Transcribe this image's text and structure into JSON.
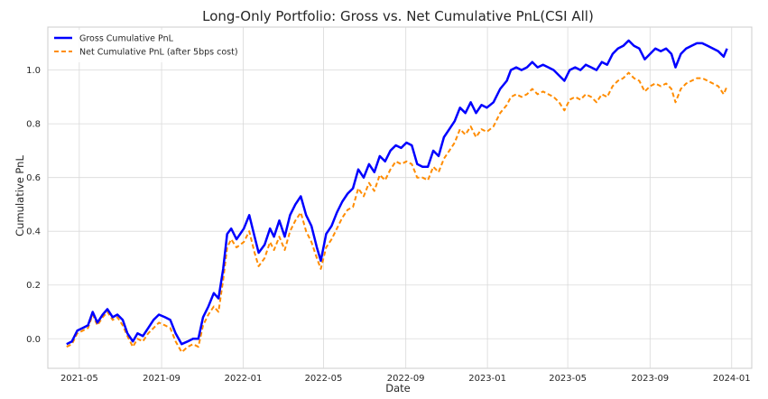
{
  "chart_data": {
    "type": "line",
    "title": "Long-Only Portfolio: Gross vs. Net Cumulative PnL(CSI All)",
    "xlabel": "Date",
    "ylabel": "Cumulative PnL",
    "xlim": [
      "2021-03-15",
      "2024-01-31"
    ],
    "ylim": [
      -0.11,
      1.16
    ],
    "grid": true,
    "legend_position": "top-left",
    "x_tick_labels": [
      "2021-05",
      "2021-09",
      "2022-01",
      "2022-05",
      "2022-09",
      "2023-01",
      "2023-05",
      "2023-09",
      "2024-01"
    ],
    "x_ticks": [
      "2021-05-01",
      "2021-09-01",
      "2022-01-01",
      "2022-05-01",
      "2022-09-01",
      "2023-01-01",
      "2023-05-01",
      "2023-09-01",
      "2024-01-01"
    ],
    "y_ticks": [
      0.0,
      0.2,
      0.4,
      0.6,
      0.8,
      1.0
    ],
    "y_tick_labels": [
      "0.0",
      "0.2",
      "0.4",
      "0.6",
      "0.8",
      "1.0"
    ],
    "series": [
      {
        "name": "Gross Cumulative PnL",
        "color": "#0000ff",
        "style": "solid",
        "points": [
          [
            "2021-04-12",
            -0.02
          ],
          [
            "2021-04-20",
            -0.01
          ],
          [
            "2021-04-28",
            0.03
          ],
          [
            "2021-05-06",
            0.04
          ],
          [
            "2021-05-14",
            0.05
          ],
          [
            "2021-05-21",
            0.1
          ],
          [
            "2021-05-28",
            0.06
          ],
          [
            "2021-06-05",
            0.09
          ],
          [
            "2021-06-12",
            0.11
          ],
          [
            "2021-06-20",
            0.08
          ],
          [
            "2021-06-27",
            0.09
          ],
          [
            "2021-07-05",
            0.07
          ],
          [
            "2021-07-12",
            0.02
          ],
          [
            "2021-07-20",
            -0.01
          ],
          [
            "2021-07-27",
            0.02
          ],
          [
            "2021-08-04",
            0.01
          ],
          [
            "2021-08-12",
            0.04
          ],
          [
            "2021-08-20",
            0.07
          ],
          [
            "2021-08-28",
            0.09
          ],
          [
            "2021-09-06",
            0.08
          ],
          [
            "2021-09-14",
            0.07
          ],
          [
            "2021-09-22",
            0.02
          ],
          [
            "2021-10-01",
            -0.02
          ],
          [
            "2021-10-10",
            -0.01
          ],
          [
            "2021-10-18",
            0.0
          ],
          [
            "2021-10-26",
            0.0
          ],
          [
            "2021-11-02",
            0.08
          ],
          [
            "2021-11-10",
            0.12
          ],
          [
            "2021-11-18",
            0.17
          ],
          [
            "2021-11-25",
            0.15
          ],
          [
            "2021-12-02",
            0.26
          ],
          [
            "2021-12-08",
            0.39
          ],
          [
            "2021-12-14",
            0.41
          ],
          [
            "2021-12-22",
            0.37
          ],
          [
            "2022-01-02",
            0.41
          ],
          [
            "2022-01-10",
            0.46
          ],
          [
            "2022-01-18",
            0.38
          ],
          [
            "2022-01-24",
            0.32
          ],
          [
            "2022-02-02",
            0.35
          ],
          [
            "2022-02-10",
            0.41
          ],
          [
            "2022-02-16",
            0.38
          ],
          [
            "2022-02-24",
            0.44
          ],
          [
            "2022-03-04",
            0.38
          ],
          [
            "2022-03-12",
            0.46
          ],
          [
            "2022-03-20",
            0.5
          ],
          [
            "2022-03-28",
            0.53
          ],
          [
            "2022-04-05",
            0.46
          ],
          [
            "2022-04-13",
            0.42
          ],
          [
            "2022-04-21",
            0.34
          ],
          [
            "2022-04-27",
            0.29
          ],
          [
            "2022-05-05",
            0.39
          ],
          [
            "2022-05-13",
            0.42
          ],
          [
            "2022-05-21",
            0.47
          ],
          [
            "2022-05-29",
            0.51
          ],
          [
            "2022-06-06",
            0.54
          ],
          [
            "2022-06-14",
            0.56
          ],
          [
            "2022-06-22",
            0.63
          ],
          [
            "2022-06-30",
            0.6
          ],
          [
            "2022-07-08",
            0.65
          ],
          [
            "2022-07-16",
            0.62
          ],
          [
            "2022-07-24",
            0.68
          ],
          [
            "2022-08-01",
            0.66
          ],
          [
            "2022-08-09",
            0.7
          ],
          [
            "2022-08-17",
            0.72
          ],
          [
            "2022-08-25",
            0.71
          ],
          [
            "2022-09-02",
            0.73
          ],
          [
            "2022-09-10",
            0.72
          ],
          [
            "2022-09-18",
            0.65
          ],
          [
            "2022-09-26",
            0.64
          ],
          [
            "2022-10-04",
            0.64
          ],
          [
            "2022-10-12",
            0.7
          ],
          [
            "2022-10-20",
            0.68
          ],
          [
            "2022-10-28",
            0.75
          ],
          [
            "2022-11-05",
            0.78
          ],
          [
            "2022-11-13",
            0.81
          ],
          [
            "2022-11-21",
            0.86
          ],
          [
            "2022-11-29",
            0.84
          ],
          [
            "2022-12-07",
            0.88
          ],
          [
            "2022-12-15",
            0.84
          ],
          [
            "2022-12-23",
            0.87
          ],
          [
            "2022-12-31",
            0.86
          ],
          [
            "2023-01-10",
            0.88
          ],
          [
            "2023-01-20",
            0.93
          ],
          [
            "2023-01-30",
            0.96
          ],
          [
            "2023-02-05",
            1.0
          ],
          [
            "2023-02-13",
            1.01
          ],
          [
            "2023-02-21",
            1.0
          ],
          [
            "2023-03-01",
            1.01
          ],
          [
            "2023-03-09",
            1.03
          ],
          [
            "2023-03-17",
            1.01
          ],
          [
            "2023-03-25",
            1.02
          ],
          [
            "2023-04-02",
            1.01
          ],
          [
            "2023-04-10",
            1.0
          ],
          [
            "2023-04-18",
            0.98
          ],
          [
            "2023-04-26",
            0.96
          ],
          [
            "2023-05-04",
            1.0
          ],
          [
            "2023-05-12",
            1.01
          ],
          [
            "2023-05-20",
            1.0
          ],
          [
            "2023-05-28",
            1.02
          ],
          [
            "2023-06-05",
            1.01
          ],
          [
            "2023-06-13",
            1.0
          ],
          [
            "2023-06-21",
            1.03
          ],
          [
            "2023-06-29",
            1.02
          ],
          [
            "2023-07-07",
            1.06
          ],
          [
            "2023-07-15",
            1.08
          ],
          [
            "2023-07-23",
            1.09
          ],
          [
            "2023-07-31",
            1.11
          ],
          [
            "2023-08-08",
            1.09
          ],
          [
            "2023-08-16",
            1.08
          ],
          [
            "2023-08-24",
            1.04
          ],
          [
            "2023-09-01",
            1.06
          ],
          [
            "2023-09-09",
            1.08
          ],
          [
            "2023-09-17",
            1.07
          ],
          [
            "2023-09-25",
            1.08
          ],
          [
            "2023-10-03",
            1.06
          ],
          [
            "2023-10-09",
            1.01
          ],
          [
            "2023-10-17",
            1.06
          ],
          [
            "2023-10-25",
            1.08
          ],
          [
            "2023-11-02",
            1.09
          ],
          [
            "2023-11-10",
            1.1
          ],
          [
            "2023-11-18",
            1.1
          ],
          [
            "2023-11-26",
            1.09
          ],
          [
            "2023-12-04",
            1.08
          ],
          [
            "2023-12-12",
            1.07
          ],
          [
            "2023-12-20",
            1.05
          ],
          [
            "2023-12-25",
            1.08
          ]
        ]
      },
      {
        "name": "Net Cumulative PnL (after 5bps cost)",
        "color": "#ff8c00",
        "style": "dashed",
        "points": [
          [
            "2021-04-12",
            -0.03
          ],
          [
            "2021-04-20",
            -0.02
          ],
          [
            "2021-04-28",
            0.02
          ],
          [
            "2021-05-06",
            0.03
          ],
          [
            "2021-05-14",
            0.04
          ],
          [
            "2021-05-21",
            0.09
          ],
          [
            "2021-05-28",
            0.05
          ],
          [
            "2021-06-05",
            0.08
          ],
          [
            "2021-06-12",
            0.1
          ],
          [
            "2021-06-20",
            0.07
          ],
          [
            "2021-06-27",
            0.08
          ],
          [
            "2021-07-05",
            0.05
          ],
          [
            "2021-07-12",
            0.01
          ],
          [
            "2021-07-20",
            -0.03
          ],
          [
            "2021-07-27",
            0.0
          ],
          [
            "2021-08-04",
            -0.01
          ],
          [
            "2021-08-12",
            0.02
          ],
          [
            "2021-08-20",
            0.04
          ],
          [
            "2021-08-28",
            0.06
          ],
          [
            "2021-09-06",
            0.05
          ],
          [
            "2021-09-14",
            0.04
          ],
          [
            "2021-09-22",
            -0.01
          ],
          [
            "2021-10-01",
            -0.05
          ],
          [
            "2021-10-10",
            -0.03
          ],
          [
            "2021-10-18",
            -0.02
          ],
          [
            "2021-10-26",
            -0.03
          ],
          [
            "2021-11-02",
            0.05
          ],
          [
            "2021-11-10",
            0.09
          ],
          [
            "2021-11-18",
            0.12
          ],
          [
            "2021-11-25",
            0.1
          ],
          [
            "2021-12-02",
            0.22
          ],
          [
            "2021-12-08",
            0.34
          ],
          [
            "2021-12-14",
            0.37
          ],
          [
            "2021-12-22",
            0.34
          ],
          [
            "2022-01-02",
            0.36
          ],
          [
            "2022-01-10",
            0.4
          ],
          [
            "2022-01-18",
            0.32
          ],
          [
            "2022-01-24",
            0.27
          ],
          [
            "2022-02-02",
            0.3
          ],
          [
            "2022-02-10",
            0.36
          ],
          [
            "2022-02-16",
            0.33
          ],
          [
            "2022-02-24",
            0.38
          ],
          [
            "2022-03-04",
            0.33
          ],
          [
            "2022-03-12",
            0.4
          ],
          [
            "2022-03-20",
            0.44
          ],
          [
            "2022-03-28",
            0.47
          ],
          [
            "2022-04-05",
            0.4
          ],
          [
            "2022-04-13",
            0.36
          ],
          [
            "2022-04-21",
            0.3
          ],
          [
            "2022-04-27",
            0.26
          ],
          [
            "2022-05-05",
            0.34
          ],
          [
            "2022-05-13",
            0.37
          ],
          [
            "2022-05-21",
            0.41
          ],
          [
            "2022-05-29",
            0.45
          ],
          [
            "2022-06-06",
            0.48
          ],
          [
            "2022-06-14",
            0.49
          ],
          [
            "2022-06-22",
            0.56
          ],
          [
            "2022-06-30",
            0.53
          ],
          [
            "2022-07-08",
            0.58
          ],
          [
            "2022-07-16",
            0.55
          ],
          [
            "2022-07-24",
            0.61
          ],
          [
            "2022-08-01",
            0.59
          ],
          [
            "2022-08-09",
            0.63
          ],
          [
            "2022-08-17",
            0.66
          ],
          [
            "2022-08-25",
            0.65
          ],
          [
            "2022-09-02",
            0.66
          ],
          [
            "2022-09-10",
            0.65
          ],
          [
            "2022-09-18",
            0.6
          ],
          [
            "2022-09-26",
            0.6
          ],
          [
            "2022-10-04",
            0.59
          ],
          [
            "2022-10-12",
            0.64
          ],
          [
            "2022-10-20",
            0.62
          ],
          [
            "2022-10-28",
            0.67
          ],
          [
            "2022-11-05",
            0.7
          ],
          [
            "2022-11-13",
            0.73
          ],
          [
            "2022-11-21",
            0.78
          ],
          [
            "2022-11-29",
            0.76
          ],
          [
            "2022-12-07",
            0.79
          ],
          [
            "2022-12-15",
            0.75
          ],
          [
            "2022-12-23",
            0.78
          ],
          [
            "2022-12-31",
            0.77
          ],
          [
            "2023-01-10",
            0.79
          ],
          [
            "2023-01-20",
            0.84
          ],
          [
            "2023-01-30",
            0.87
          ],
          [
            "2023-02-05",
            0.9
          ],
          [
            "2023-02-13",
            0.91
          ],
          [
            "2023-02-21",
            0.9
          ],
          [
            "2023-03-01",
            0.91
          ],
          [
            "2023-03-09",
            0.93
          ],
          [
            "2023-03-17",
            0.91
          ],
          [
            "2023-03-25",
            0.92
          ],
          [
            "2023-04-02",
            0.91
          ],
          [
            "2023-04-10",
            0.9
          ],
          [
            "2023-04-18",
            0.88
          ],
          [
            "2023-04-26",
            0.85
          ],
          [
            "2023-05-04",
            0.89
          ],
          [
            "2023-05-12",
            0.9
          ],
          [
            "2023-05-20",
            0.89
          ],
          [
            "2023-05-28",
            0.91
          ],
          [
            "2023-06-05",
            0.9
          ],
          [
            "2023-06-13",
            0.88
          ],
          [
            "2023-06-21",
            0.91
          ],
          [
            "2023-06-29",
            0.9
          ],
          [
            "2023-07-07",
            0.94
          ],
          [
            "2023-07-15",
            0.96
          ],
          [
            "2023-07-23",
            0.97
          ],
          [
            "2023-07-31",
            0.99
          ],
          [
            "2023-08-08",
            0.97
          ],
          [
            "2023-08-16",
            0.96
          ],
          [
            "2023-08-24",
            0.92
          ],
          [
            "2023-09-01",
            0.94
          ],
          [
            "2023-09-09",
            0.95
          ],
          [
            "2023-09-17",
            0.94
          ],
          [
            "2023-09-25",
            0.95
          ],
          [
            "2023-10-03",
            0.93
          ],
          [
            "2023-10-09",
            0.88
          ],
          [
            "2023-10-17",
            0.93
          ],
          [
            "2023-10-25",
            0.95
          ],
          [
            "2023-11-02",
            0.96
          ],
          [
            "2023-11-10",
            0.97
          ],
          [
            "2023-11-18",
            0.97
          ],
          [
            "2023-11-26",
            0.96
          ],
          [
            "2023-12-04",
            0.95
          ],
          [
            "2023-12-12",
            0.94
          ],
          [
            "2023-12-20",
            0.91
          ],
          [
            "2023-12-25",
            0.94
          ]
        ]
      }
    ]
  }
}
